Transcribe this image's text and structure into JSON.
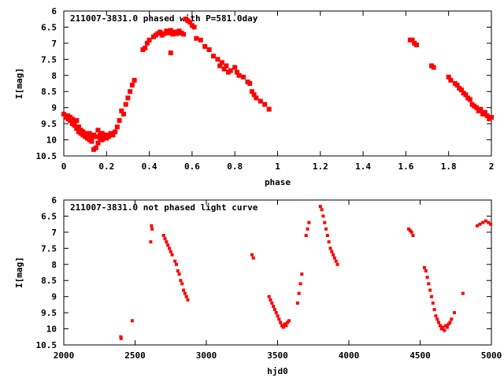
{
  "chart_data": [
    {
      "type": "scatter",
      "title": "211007-3831.0 phased with P=581.0day",
      "xlabel": "phase",
      "ylabel": "I[mag]",
      "xlim": [
        0,
        2
      ],
      "ylim": [
        6,
        10.5
      ],
      "y_inverted": true,
      "grid": false,
      "marker_color": "#ff0000",
      "x_ticks": [
        "0",
        "0.2",
        "0.4",
        "0.6",
        "0.8",
        "1",
        "1.2",
        "1.4",
        "1.6",
        "1.8",
        "2"
      ],
      "y_ticks": [
        "6",
        "6.5",
        "7",
        "7.5",
        "8",
        "8.5",
        "9",
        "9.5",
        "10",
        "10.5"
      ],
      "series": [
        {
          "points": [
            [
              0.0,
              9.2
            ],
            [
              0.01,
              9.3
            ],
            [
              0.02,
              9.35
            ],
            [
              0.02,
              9.25
            ],
            [
              0.03,
              9.4
            ],
            [
              0.03,
              9.3
            ],
            [
              0.04,
              9.5
            ],
            [
              0.04,
              9.35
            ],
            [
              0.05,
              9.45
            ],
            [
              0.05,
              9.55
            ],
            [
              0.06,
              9.4
            ],
            [
              0.06,
              9.65
            ],
            [
              0.07,
              9.6
            ],
            [
              0.07,
              9.75
            ],
            [
              0.08,
              9.8
            ],
            [
              0.08,
              9.7
            ],
            [
              0.09,
              9.85
            ],
            [
              0.09,
              9.75
            ],
            [
              0.1,
              9.9
            ],
            [
              0.1,
              9.8
            ],
            [
              0.11,
              9.95
            ],
            [
              0.11,
              9.85
            ],
            [
              0.12,
              10.0
            ],
            [
              0.12,
              9.8
            ],
            [
              0.13,
              9.95
            ],
            [
              0.13,
              10.05
            ],
            [
              0.14,
              9.85
            ],
            [
              0.14,
              10.3
            ],
            [
              0.15,
              10.25
            ],
            [
              0.15,
              9.9
            ],
            [
              0.16,
              9.7
            ],
            [
              0.16,
              10.1
            ],
            [
              0.17,
              9.95
            ],
            [
              0.17,
              9.85
            ],
            [
              0.18,
              10.0
            ],
            [
              0.18,
              9.8
            ],
            [
              0.19,
              9.9
            ],
            [
              0.2,
              9.95
            ],
            [
              0.2,
              9.85
            ],
            [
              0.21,
              9.9
            ],
            [
              0.22,
              9.8
            ],
            [
              0.23,
              9.85
            ],
            [
              0.24,
              9.75
            ],
            [
              0.25,
              9.6
            ],
            [
              0.26,
              9.4
            ],
            [
              0.27,
              9.1
            ],
            [
              0.28,
              9.2
            ],
            [
              0.29,
              8.9
            ],
            [
              0.3,
              8.7
            ],
            [
              0.31,
              8.5
            ],
            [
              0.32,
              8.3
            ],
            [
              0.33,
              8.15
            ],
            [
              0.37,
              7.2
            ],
            [
              0.38,
              7.15
            ],
            [
              0.39,
              7.0
            ],
            [
              0.4,
              6.9
            ],
            [
              0.42,
              6.8
            ],
            [
              0.43,
              6.75
            ],
            [
              0.44,
              6.7
            ],
            [
              0.45,
              6.65
            ],
            [
              0.46,
              6.75
            ],
            [
              0.47,
              6.7
            ],
            [
              0.48,
              6.62
            ],
            [
              0.49,
              6.68
            ],
            [
              0.5,
              6.6
            ],
            [
              0.51,
              6.72
            ],
            [
              0.52,
              6.65
            ],
            [
              0.53,
              6.7
            ],
            [
              0.54,
              6.62
            ],
            [
              0.55,
              6.68
            ],
            [
              0.56,
              6.72
            ],
            [
              0.57,
              6.25
            ],
            [
              0.58,
              6.3
            ],
            [
              0.59,
              6.35
            ],
            [
              0.6,
              6.45
            ],
            [
              0.61,
              6.5
            ],
            [
              0.5,
              7.3
            ],
            [
              0.62,
              6.85
            ],
            [
              0.64,
              6.9
            ],
            [
              0.66,
              7.1
            ],
            [
              0.68,
              7.2
            ],
            [
              0.7,
              7.4
            ],
            [
              0.72,
              7.5
            ],
            [
              0.73,
              7.7
            ],
            [
              0.74,
              7.6
            ],
            [
              0.75,
              7.8
            ],
            [
              0.76,
              7.7
            ],
            [
              0.77,
              7.9
            ],
            [
              0.78,
              7.85
            ],
            [
              0.8,
              7.75
            ],
            [
              0.81,
              7.9
            ],
            [
              0.82,
              8.0
            ],
            [
              0.84,
              8.05
            ],
            [
              0.86,
              8.2
            ],
            [
              0.87,
              8.25
            ],
            [
              0.88,
              8.5
            ],
            [
              0.89,
              8.6
            ],
            [
              0.9,
              8.7
            ],
            [
              0.92,
              8.8
            ],
            [
              0.94,
              8.9
            ],
            [
              0.96,
              9.05
            ],
            [
              1.62,
              6.9
            ],
            [
              1.63,
              6.9
            ],
            [
              1.64,
              7.0
            ],
            [
              1.65,
              7.05
            ],
            [
              1.72,
              7.7
            ],
            [
              1.73,
              7.75
            ],
            [
              1.8,
              8.05
            ],
            [
              1.81,
              8.15
            ],
            [
              1.83,
              8.25
            ],
            [
              1.84,
              8.3
            ],
            [
              1.85,
              8.4
            ],
            [
              1.86,
              8.45
            ],
            [
              1.87,
              8.55
            ],
            [
              1.88,
              8.6
            ],
            [
              1.89,
              8.7
            ],
            [
              1.9,
              8.75
            ],
            [
              1.91,
              8.9
            ],
            [
              1.92,
              8.95
            ],
            [
              1.93,
              9.0
            ],
            [
              1.94,
              9.1
            ],
            [
              1.95,
              9.05
            ],
            [
              1.96,
              9.2
            ],
            [
              1.97,
              9.15
            ],
            [
              1.98,
              9.25
            ],
            [
              1.99,
              9.35
            ],
            [
              2.0,
              9.3
            ]
          ]
        }
      ]
    },
    {
      "type": "scatter",
      "title": "211007-3831.0 not phased light curve",
      "xlabel": "hjd0",
      "ylabel": "I[mag]",
      "xlim": [
        2000,
        5000
      ],
      "ylim": [
        6,
        10.5
      ],
      "y_inverted": true,
      "grid": false,
      "marker_color": "#ff0000",
      "x_ticks": [
        "2000",
        "2500",
        "3000",
        "3500",
        "4000",
        "4500",
        "5000"
      ],
      "y_ticks": [
        "6",
        "6.5",
        "7",
        "7.5",
        "8",
        "8.5",
        "9",
        "9.5",
        "10",
        "10.5"
      ],
      "series": [
        {
          "points": [
            [
              2400,
              10.25
            ],
            [
              2402,
              10.3
            ],
            [
              2480,
              9.75
            ],
            [
              2610,
              7.3
            ],
            [
              2615,
              6.8
            ],
            [
              2620,
              6.9
            ],
            [
              2700,
              7.1
            ],
            [
              2710,
              7.2
            ],
            [
              2720,
              7.3
            ],
            [
              2730,
              7.4
            ],
            [
              2740,
              7.5
            ],
            [
              2750,
              7.6
            ],
            [
              2760,
              7.7
            ],
            [
              2780,
              7.9
            ],
            [
              2790,
              8.0
            ],
            [
              2800,
              8.2
            ],
            [
              2810,
              8.3
            ],
            [
              2820,
              8.5
            ],
            [
              2830,
              8.6
            ],
            [
              2840,
              8.8
            ],
            [
              2850,
              8.9
            ],
            [
              2860,
              9.0
            ],
            [
              2870,
              9.1
            ],
            [
              3320,
              7.7
            ],
            [
              3330,
              7.8
            ],
            [
              3440,
              9.0
            ],
            [
              3450,
              9.1
            ],
            [
              3460,
              9.2
            ],
            [
              3470,
              9.3
            ],
            [
              3480,
              9.4
            ],
            [
              3490,
              9.5
            ],
            [
              3500,
              9.6
            ],
            [
              3510,
              9.7
            ],
            [
              3520,
              9.8
            ],
            [
              3530,
              9.9
            ],
            [
              3540,
              9.95
            ],
            [
              3550,
              9.85
            ],
            [
              3560,
              9.9
            ],
            [
              3570,
              9.8
            ],
            [
              3580,
              9.75
            ],
            [
              3640,
              9.2
            ],
            [
              3650,
              8.9
            ],
            [
              3660,
              8.6
            ],
            [
              3670,
              8.3
            ],
            [
              3700,
              7.1
            ],
            [
              3710,
              6.9
            ],
            [
              3720,
              6.7
            ],
            [
              3800,
              6.2
            ],
            [
              3810,
              6.3
            ],
            [
              3820,
              6.5
            ],
            [
              3830,
              6.7
            ],
            [
              3840,
              6.9
            ],
            [
              3850,
              7.1
            ],
            [
              3860,
              7.3
            ],
            [
              3870,
              7.5
            ],
            [
              3880,
              7.6
            ],
            [
              3890,
              7.7
            ],
            [
              3900,
              7.8
            ],
            [
              3910,
              7.9
            ],
            [
              3920,
              8.0
            ],
            [
              4420,
              6.9
            ],
            [
              4430,
              6.95
            ],
            [
              4440,
              7.0
            ],
            [
              4450,
              7.1
            ],
            [
              4530,
              8.1
            ],
            [
              4540,
              8.2
            ],
            [
              4550,
              8.4
            ],
            [
              4560,
              8.6
            ],
            [
              4570,
              8.8
            ],
            [
              4580,
              9.0
            ],
            [
              4590,
              9.2
            ],
            [
              4600,
              9.4
            ],
            [
              4610,
              9.6
            ],
            [
              4620,
              9.7
            ],
            [
              4630,
              9.8
            ],
            [
              4640,
              9.9
            ],
            [
              4650,
              10.0
            ],
            [
              4660,
              9.95
            ],
            [
              4670,
              10.05
            ],
            [
              4680,
              9.9
            ],
            [
              4690,
              9.95
            ],
            [
              4700,
              9.85
            ],
            [
              4710,
              9.8
            ],
            [
              4720,
              9.7
            ],
            [
              4740,
              9.5
            ],
            [
              4800,
              8.9
            ],
            [
              4900,
              6.8
            ],
            [
              4920,
              6.75
            ],
            [
              4940,
              6.7
            ],
            [
              4960,
              6.65
            ],
            [
              4980,
              6.7
            ],
            [
              4995,
              6.75
            ]
          ]
        }
      ]
    }
  ]
}
